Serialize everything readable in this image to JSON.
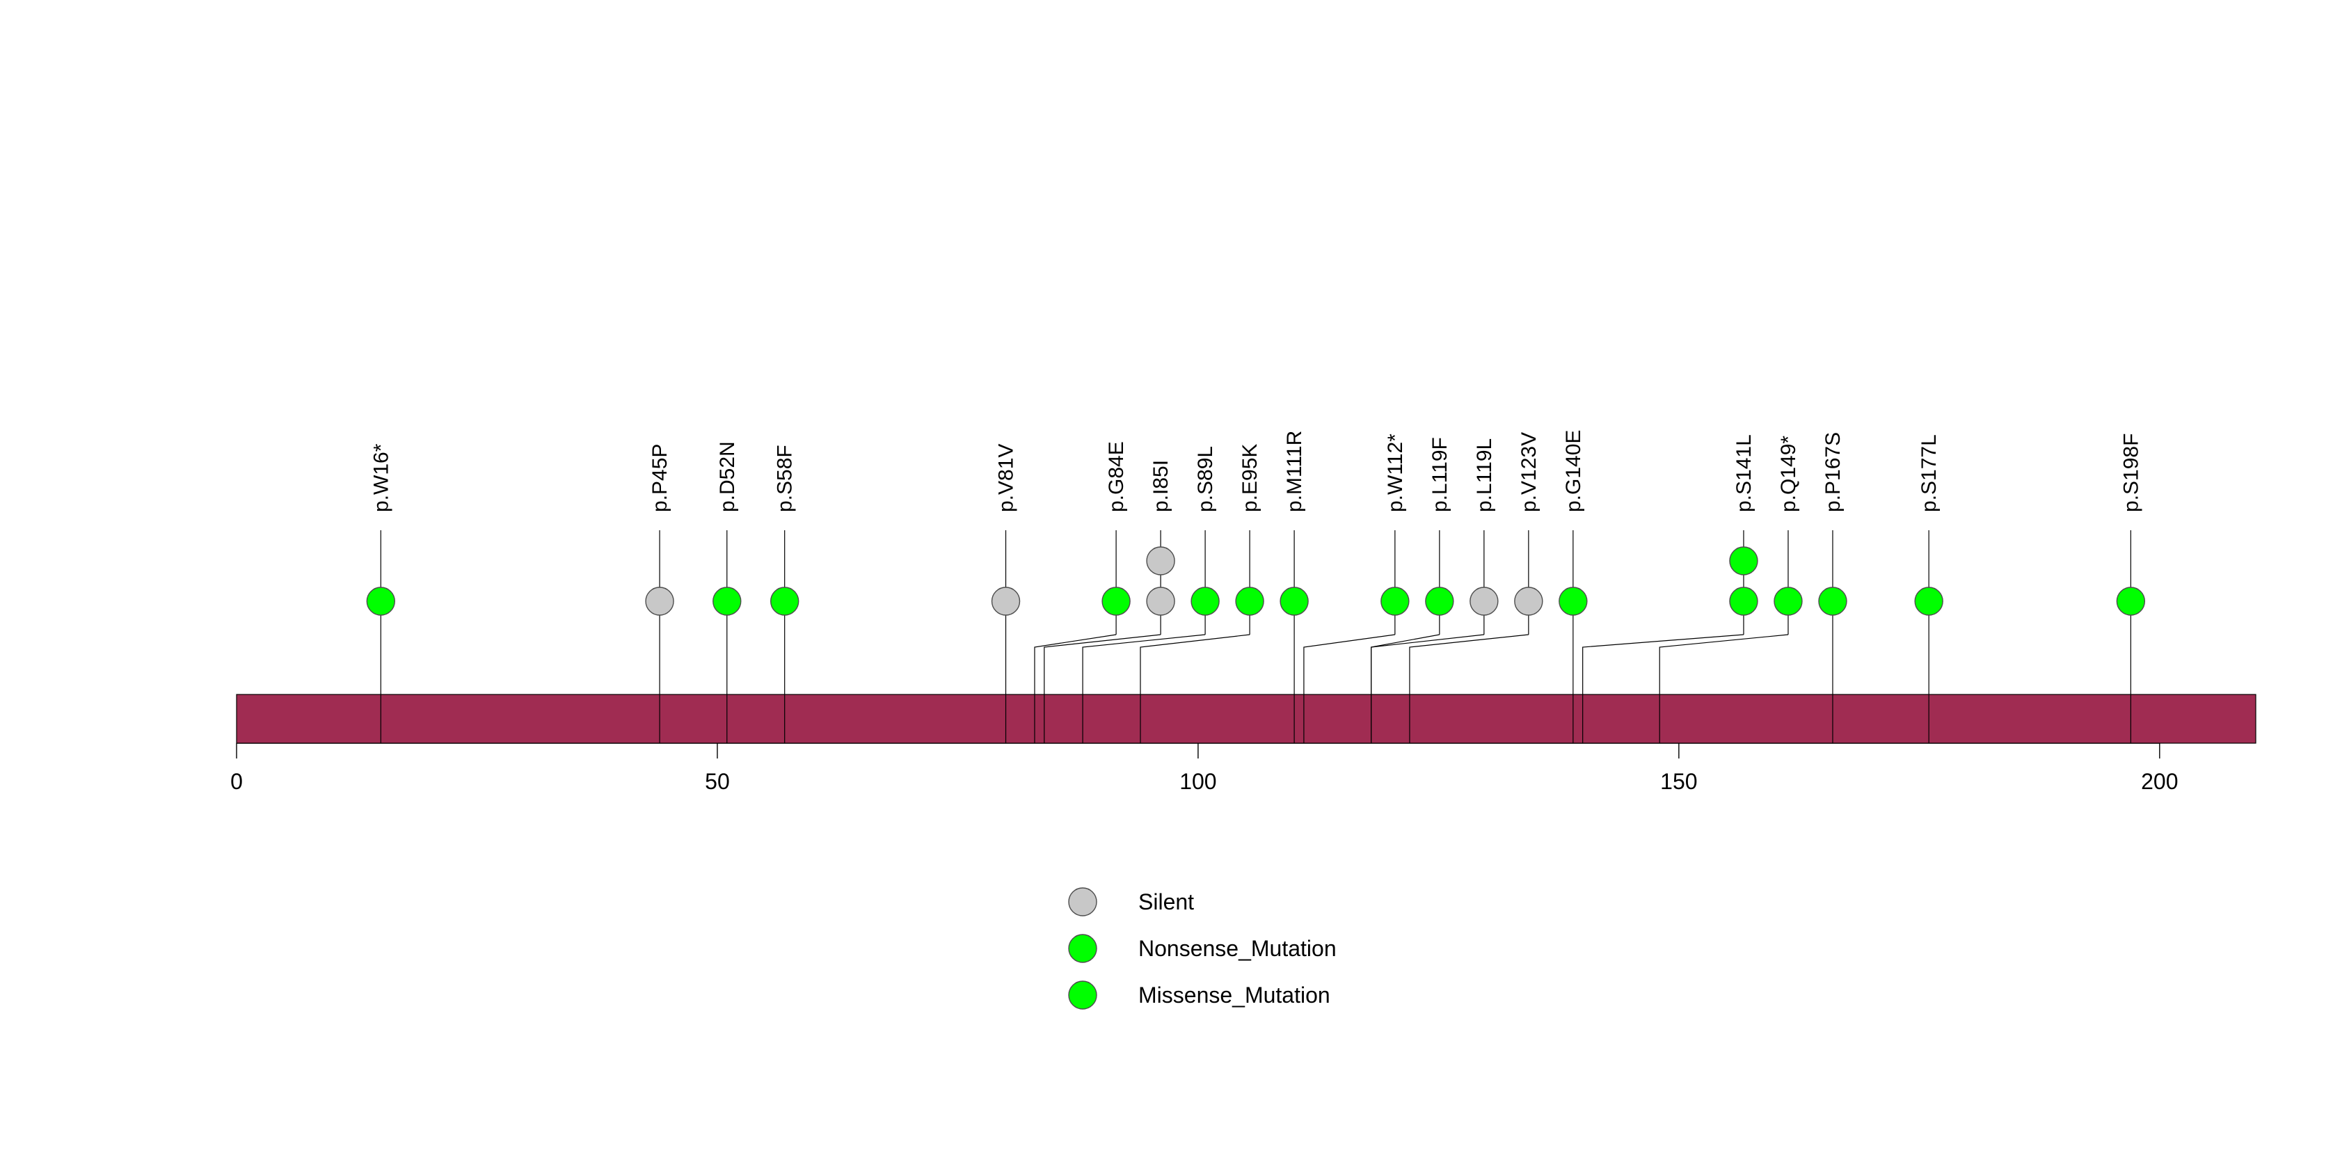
{
  "chart_data": {
    "type": "lollipop",
    "title": "",
    "xlabel": "",
    "ylabel": "",
    "xlim": [
      0,
      210
    ],
    "x_ticks": [
      0,
      50,
      100,
      150,
      200
    ],
    "protein_bar_color": "#A02C52",
    "mutation_types": [
      {
        "name": "Silent",
        "color": "#C8C8C8"
      },
      {
        "name": "Nonsense_Mutation",
        "color": "#00FF00"
      },
      {
        "name": "Missense_Mutation",
        "color": "#00FF00"
      }
    ],
    "mutations": [
      {
        "label": "p.W16*",
        "position": 15,
        "type": "Nonsense_Mutation",
        "count": 1
      },
      {
        "label": "p.P45P",
        "position": 44,
        "type": "Silent",
        "count": 1
      },
      {
        "label": "p.D52N",
        "position": 51,
        "type": "Missense_Mutation",
        "count": 1
      },
      {
        "label": "p.S58F",
        "position": 57,
        "type": "Missense_Mutation",
        "count": 1
      },
      {
        "label": "p.V81V",
        "position": 80,
        "type": "Silent",
        "count": 1
      },
      {
        "label": "p.G84E",
        "position": 83,
        "type": "Missense_Mutation",
        "count": 1
      },
      {
        "label": "p.I85I",
        "position": 84,
        "type": "Silent",
        "count": 2
      },
      {
        "label": "p.S89L",
        "position": 88,
        "type": "Missense_Mutation",
        "count": 1
      },
      {
        "label": "p.E95K",
        "position": 94,
        "type": "Missense_Mutation",
        "count": 1
      },
      {
        "label": "p.M111R",
        "position": 110,
        "type": "Missense_Mutation",
        "count": 1
      },
      {
        "label": "p.W112*",
        "position": 111,
        "type": "Nonsense_Mutation",
        "count": 1
      },
      {
        "label": "p.L119F",
        "position": 118,
        "type": "Missense_Mutation",
        "count": 1
      },
      {
        "label": "p.L119L",
        "position": 118,
        "type": "Silent",
        "count": 1
      },
      {
        "label": "p.V123V",
        "position": 122,
        "type": "Silent",
        "count": 1
      },
      {
        "label": "p.G140E",
        "position": 139,
        "type": "Missense_Mutation",
        "count": 1
      },
      {
        "label": "p.S141L",
        "position": 140,
        "type": "Missense_Mutation",
        "count": 2
      },
      {
        "label": "p.Q149*",
        "position": 148,
        "type": "Nonsense_Mutation",
        "count": 1
      },
      {
        "label": "p.P167S",
        "position": 166,
        "type": "Missense_Mutation",
        "count": 1
      },
      {
        "label": "p.S177L",
        "position": 176,
        "type": "Missense_Mutation",
        "count": 1
      },
      {
        "label": "p.S198F",
        "position": 197,
        "type": "Missense_Mutation",
        "count": 1
      }
    ]
  }
}
